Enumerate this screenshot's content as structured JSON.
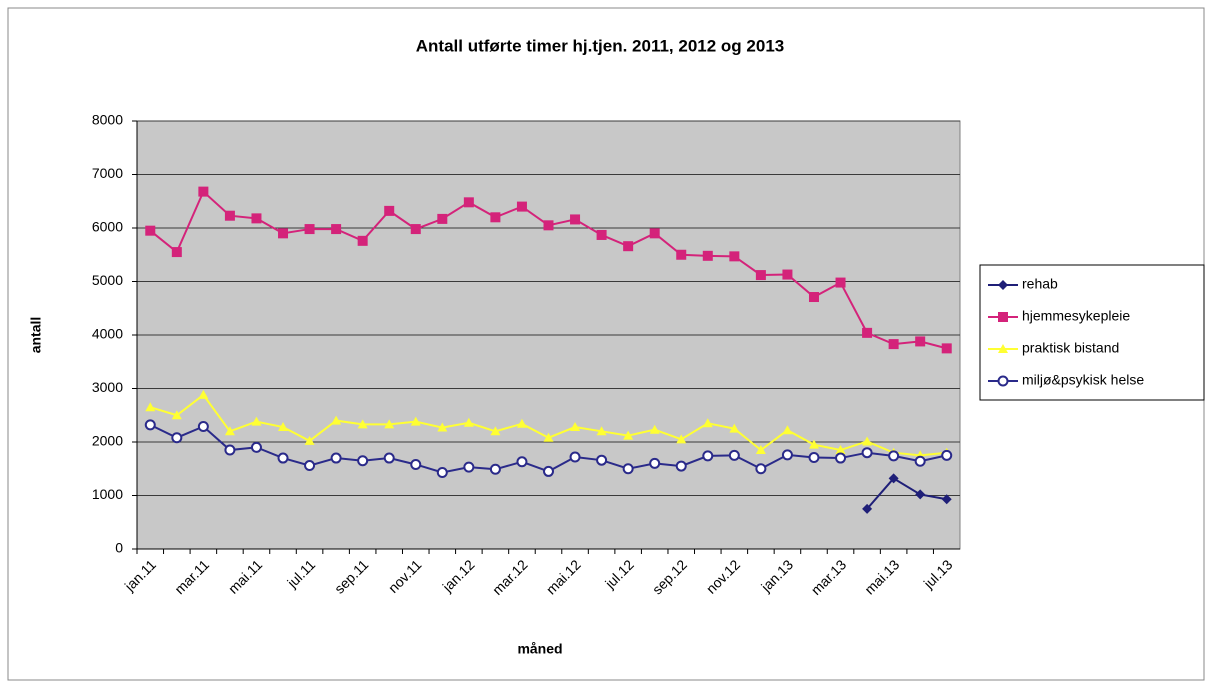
{
  "chart_data": {
    "type": "line",
    "title": "Antall utførte timer hj.tjen. 2011, 2012 og 2013",
    "x_label": "måned",
    "y_label": "antall",
    "categories": [
      "jan.11",
      null,
      "mar.11",
      null,
      "mai.11",
      null,
      "jul.11",
      null,
      "sep.11",
      null,
      "nov.11",
      null,
      "jan.12",
      null,
      "mar.12",
      null,
      "mai.12",
      null,
      "jul.12",
      null,
      "sep.12",
      null,
      "nov.12",
      null,
      "jan.13",
      null,
      "mar.13",
      null,
      "mai.13",
      null,
      "jul.13"
    ],
    "series": [
      {
        "name": "rehab",
        "color": "#1f1f78",
        "marker": "diamond",
        "values": [
          null,
          null,
          null,
          null,
          null,
          null,
          null,
          null,
          null,
          null,
          null,
          null,
          null,
          null,
          null,
          null,
          null,
          null,
          null,
          null,
          null,
          null,
          null,
          null,
          null,
          null,
          null,
          750,
          1320,
          1020,
          930
        ]
      },
      {
        "name": "hjemmesykepleie",
        "color": "#d4237a",
        "marker": "square",
        "values": [
          5950,
          5550,
          6680,
          6230,
          6180,
          5900,
          5980,
          5980,
          5760,
          6320,
          5980,
          6170,
          6480,
          6200,
          6400,
          6050,
          6160,
          5870,
          5660,
          5900,
          5500,
          5480,
          5470,
          5120,
          5130,
          4710,
          4980,
          4040,
          3830,
          3880,
          3750
        ]
      },
      {
        "name": "praktisk bistand",
        "color": "#ffff33",
        "marker": "triangle",
        "values": [
          2650,
          2500,
          2880,
          2200,
          2380,
          2280,
          2020,
          2400,
          2330,
          2330,
          2380,
          2270,
          2360,
          2200,
          2340,
          2080,
          2280,
          2200,
          2120,
          2230,
          2050,
          2350,
          2250,
          1850,
          2220,
          1950,
          1850,
          2010,
          1800,
          1750,
          1800
        ]
      },
      {
        "name": "miljø&psykisk helse",
        "color": "#2a2a8a",
        "marker": "circle",
        "values": [
          2320,
          2080,
          2290,
          1850,
          1900,
          1700,
          1560,
          1700,
          1650,
          1700,
          1580,
          1430,
          1530,
          1490,
          1630,
          1450,
          1720,
          1660,
          1500,
          1600,
          1550,
          1740,
          1750,
          1500,
          1760,
          1710,
          1700,
          1800,
          1740,
          1640,
          1750
        ]
      }
    ],
    "ylim": [
      0,
      8000
    ],
    "yticks": [
      0,
      1000,
      2000,
      3000,
      4000,
      5000,
      6000,
      7000,
      8000
    ],
    "grid": true,
    "legend": "right"
  }
}
